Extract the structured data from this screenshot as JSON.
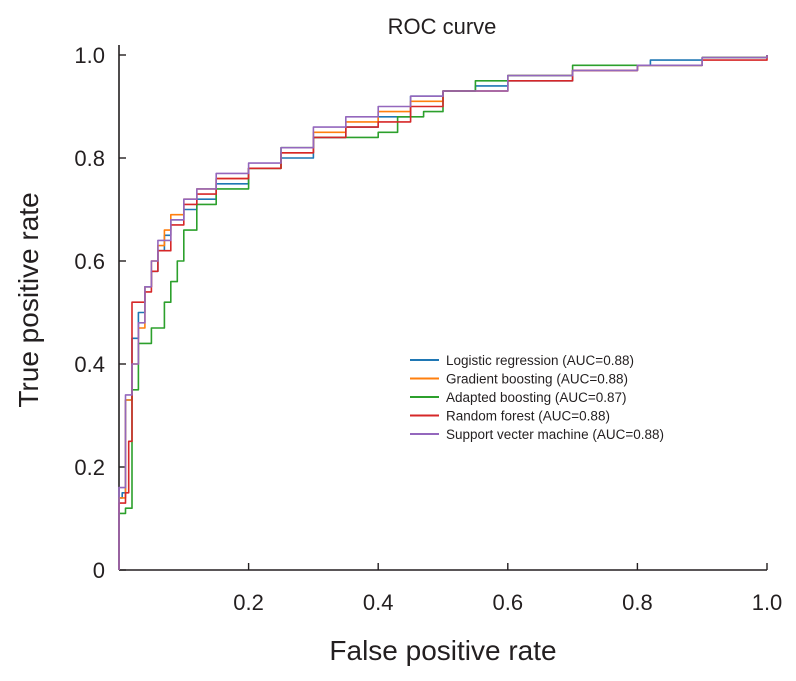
{
  "chart_data": {
    "type": "line",
    "title": "ROC curve",
    "xlabel": "False positive rate",
    "ylabel": "True positive rate",
    "xlim": [
      0,
      1
    ],
    "ylim": [
      0,
      1
    ],
    "x_ticks": [
      0.2,
      0.4,
      0.6,
      0.8,
      1.0
    ],
    "x_tick_labels": [
      "0.2",
      "0.4",
      "0.6",
      "0.8",
      "1.0"
    ],
    "y_ticks": [
      0,
      0.2,
      0.4,
      0.6,
      0.8,
      1.0
    ],
    "y_tick_labels": [
      "0",
      "0.2",
      "0.4",
      "0.6",
      "0.8",
      "1.0"
    ],
    "legend_position": "center-right",
    "series": [
      {
        "name": "Logistic regression (AUC=0.88)",
        "color": "#1f77b4",
        "points": [
          [
            0,
            0
          ],
          [
            0,
            0.14
          ],
          [
            0.005,
            0.15
          ],
          [
            0.01,
            0.33
          ],
          [
            0.02,
            0.35
          ],
          [
            0.02,
            0.45
          ],
          [
            0.03,
            0.5
          ],
          [
            0.04,
            0.55
          ],
          [
            0.05,
            0.58
          ],
          [
            0.06,
            0.62
          ],
          [
            0.07,
            0.65
          ],
          [
            0.08,
            0.68
          ],
          [
            0.1,
            0.7
          ],
          [
            0.12,
            0.72
          ],
          [
            0.15,
            0.75
          ],
          [
            0.2,
            0.78
          ],
          [
            0.25,
            0.8
          ],
          [
            0.3,
            0.84
          ],
          [
            0.35,
            0.86
          ],
          [
            0.4,
            0.88
          ],
          [
            0.45,
            0.92
          ],
          [
            0.5,
            0.93
          ],
          [
            0.55,
            0.94
          ],
          [
            0.6,
            0.95
          ],
          [
            0.7,
            0.97
          ],
          [
            0.8,
            0.98
          ],
          [
            0.82,
            0.99
          ],
          [
            0.9,
            0.995
          ],
          [
            1,
            1
          ]
        ]
      },
      {
        "name": "Gradient boosting (AUC=0.88)",
        "color": "#ff7f0e",
        "points": [
          [
            0,
            0
          ],
          [
            0,
            0.14
          ],
          [
            0.01,
            0.33
          ],
          [
            0.02,
            0.4
          ],
          [
            0.03,
            0.47
          ],
          [
            0.04,
            0.55
          ],
          [
            0.05,
            0.6
          ],
          [
            0.06,
            0.63
          ],
          [
            0.07,
            0.66
          ],
          [
            0.08,
            0.69
          ],
          [
            0.1,
            0.72
          ],
          [
            0.12,
            0.74
          ],
          [
            0.15,
            0.76
          ],
          [
            0.2,
            0.78
          ],
          [
            0.25,
            0.81
          ],
          [
            0.3,
            0.85
          ],
          [
            0.35,
            0.87
          ],
          [
            0.4,
            0.89
          ],
          [
            0.45,
            0.91
          ],
          [
            0.5,
            0.93
          ],
          [
            0.6,
            0.96
          ],
          [
            0.7,
            0.97
          ],
          [
            0.8,
            0.98
          ],
          [
            0.9,
            0.995
          ],
          [
            1,
            1
          ]
        ]
      },
      {
        "name": "Adapted boosting (AUC=0.87)",
        "color": "#2ca02c",
        "points": [
          [
            0,
            0
          ],
          [
            0,
            0.11
          ],
          [
            0.01,
            0.12
          ],
          [
            0.02,
            0.35
          ],
          [
            0.03,
            0.44
          ],
          [
            0.05,
            0.47
          ],
          [
            0.07,
            0.52
          ],
          [
            0.08,
            0.56
          ],
          [
            0.09,
            0.6
          ],
          [
            0.1,
            0.66
          ],
          [
            0.12,
            0.71
          ],
          [
            0.15,
            0.74
          ],
          [
            0.2,
            0.78
          ],
          [
            0.25,
            0.82
          ],
          [
            0.3,
            0.84
          ],
          [
            0.35,
            0.84
          ],
          [
            0.4,
            0.85
          ],
          [
            0.43,
            0.88
          ],
          [
            0.47,
            0.89
          ],
          [
            0.5,
            0.93
          ],
          [
            0.55,
            0.95
          ],
          [
            0.6,
            0.96
          ],
          [
            0.7,
            0.98
          ],
          [
            0.8,
            0.98
          ],
          [
            0.9,
            0.995
          ],
          [
            1,
            1
          ]
        ]
      },
      {
        "name": "Random forest (AUC=0.88)",
        "color": "#d62728",
        "points": [
          [
            0,
            0
          ],
          [
            0,
            0.13
          ],
          [
            0.01,
            0.15
          ],
          [
            0.015,
            0.25
          ],
          [
            0.02,
            0.52
          ],
          [
            0.04,
            0.54
          ],
          [
            0.05,
            0.58
          ],
          [
            0.06,
            0.62
          ],
          [
            0.08,
            0.67
          ],
          [
            0.1,
            0.71
          ],
          [
            0.12,
            0.73
          ],
          [
            0.15,
            0.76
          ],
          [
            0.2,
            0.78
          ],
          [
            0.25,
            0.81
          ],
          [
            0.3,
            0.84
          ],
          [
            0.35,
            0.86
          ],
          [
            0.4,
            0.87
          ],
          [
            0.45,
            0.9
          ],
          [
            0.5,
            0.93
          ],
          [
            0.6,
            0.95
          ],
          [
            0.7,
            0.97
          ],
          [
            0.8,
            0.98
          ],
          [
            0.9,
            0.99
          ],
          [
            1,
            1
          ]
        ]
      },
      {
        "name": "Support vecter machine (AUC=0.88)",
        "color": "#9467bd",
        "points": [
          [
            0,
            0
          ],
          [
            0,
            0.16
          ],
          [
            0.01,
            0.34
          ],
          [
            0.02,
            0.4
          ],
          [
            0.03,
            0.48
          ],
          [
            0.04,
            0.55
          ],
          [
            0.05,
            0.6
          ],
          [
            0.06,
            0.64
          ],
          [
            0.08,
            0.68
          ],
          [
            0.1,
            0.72
          ],
          [
            0.12,
            0.74
          ],
          [
            0.15,
            0.77
          ],
          [
            0.2,
            0.79
          ],
          [
            0.25,
            0.82
          ],
          [
            0.3,
            0.86
          ],
          [
            0.35,
            0.88
          ],
          [
            0.4,
            0.9
          ],
          [
            0.45,
            0.92
          ],
          [
            0.5,
            0.93
          ],
          [
            0.6,
            0.96
          ],
          [
            0.7,
            0.97
          ],
          [
            0.8,
            0.98
          ],
          [
            0.9,
            0.995
          ],
          [
            1,
            1
          ]
        ]
      }
    ]
  }
}
